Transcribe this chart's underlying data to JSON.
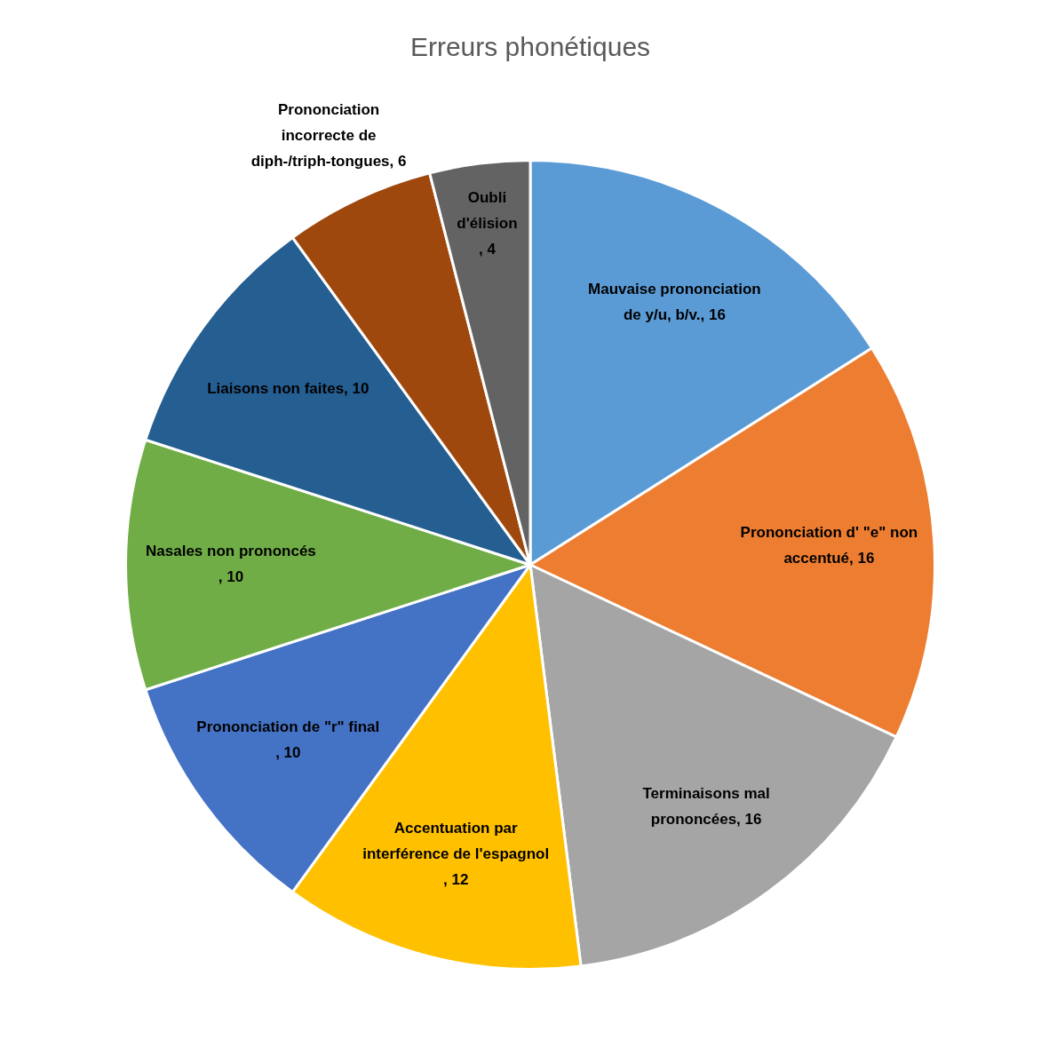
{
  "chart_data": {
    "type": "pie",
    "title": "Erreurs phonétiques",
    "categories": [
      "Mauvaise prononciation de y/u, b/v.",
      "Prononciation d' \"e\" non accentué",
      "Terminaisons mal prononcées",
      "Accentuation par interférence de l'espagnol",
      "Prononciation de \"r\" final",
      "Nasales non prononcés",
      "Liaisons non faites",
      "Prononciation incorrecte de diph-/triph-tongues",
      "Oubli d'élision"
    ],
    "values": [
      16,
      16,
      16,
      12,
      10,
      10,
      10,
      6,
      4
    ],
    "colors": [
      "#5b9bd5",
      "#ed7d31",
      "#a5a5a5",
      "#ffc000",
      "#4472c4",
      "#70ad47",
      "#255e91",
      "#9e480e",
      "#636363"
    ],
    "value_labels": [
      ", 16",
      ", 16",
      ", 16",
      ", 12",
      ", 10",
      ", 10",
      ", 10",
      ", 6",
      ", 4"
    ],
    "legend": false
  }
}
